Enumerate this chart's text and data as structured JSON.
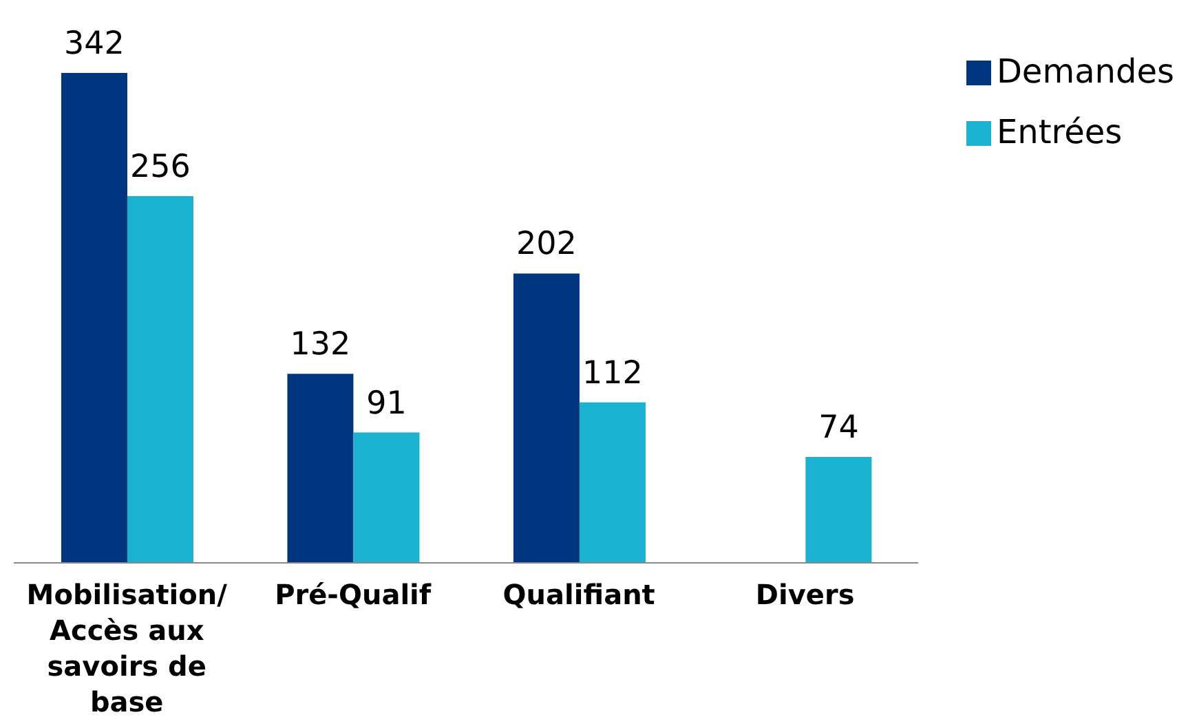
{
  "chart_data": {
    "type": "bar",
    "categories": [
      "Mobilisation/ Accès aux savoirs de base",
      "Pré-Qualif",
      "Qualifiant",
      "Divers"
    ],
    "series": [
      {
        "name": "Demandes",
        "color": "#003580",
        "values": [
          342,
          132,
          202,
          null
        ]
      },
      {
        "name": "Entrées",
        "color": "#1ab2d0",
        "values": [
          256,
          91,
          112,
          74
        ]
      }
    ],
    "data_labels": true,
    "legend": "top right",
    "grid": false
  }
}
